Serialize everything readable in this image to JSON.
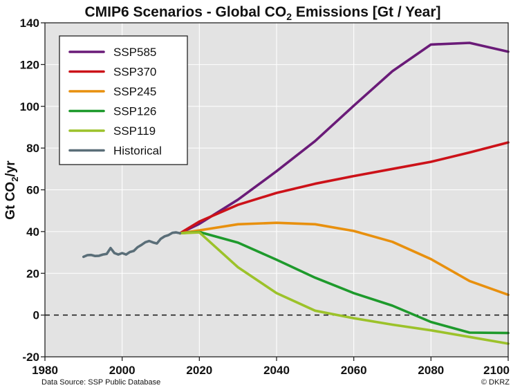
{
  "chart_data": {
    "type": "line",
    "title": {
      "prefix": "CMIP6 Scenarios  -   Global CO",
      "sub": "2",
      "suffix": " Emissions [Gt / Year]"
    },
    "ylabel": {
      "prefix": "Gt CO",
      "sub": "2",
      "suffix": "/yr"
    },
    "xlabel": "",
    "xlim": [
      1980,
      2100
    ],
    "ylim": [
      -20,
      140
    ],
    "x_ticks": [
      1980,
      2000,
      2020,
      2040,
      2060,
      2080,
      2100
    ],
    "y_ticks": [
      -20,
      0,
      20,
      40,
      60,
      80,
      100,
      120,
      140
    ],
    "grid": true,
    "zero_line": "dashed",
    "legend_position": "top-left",
    "series": [
      {
        "name": "SSP585",
        "color": "#6a1b78",
        "x": [
          2015,
          2020,
          2030,
          2040,
          2050,
          2060,
          2070,
          2080,
          2090,
          2100
        ],
        "y": [
          39.2,
          43.7,
          55.3,
          68.9,
          83.4,
          100.3,
          116.8,
          129.6,
          130.4,
          126.2
        ]
      },
      {
        "name": "SSP370",
        "color": "#cc1219",
        "x": [
          2015,
          2020,
          2030,
          2040,
          2050,
          2060,
          2070,
          2080,
          2090,
          2100
        ],
        "y": [
          39.2,
          44.8,
          52.8,
          58.5,
          62.9,
          66.6,
          70.0,
          73.4,
          77.9,
          82.7
        ]
      },
      {
        "name": "SSP245",
        "color": "#e8900e",
        "x": [
          2015,
          2020,
          2030,
          2040,
          2050,
          2060,
          2070,
          2080,
          2090,
          2100
        ],
        "y": [
          39.2,
          40.6,
          43.5,
          44.2,
          43.5,
          40.3,
          35.1,
          26.8,
          16.3,
          9.7
        ]
      },
      {
        "name": "SSP126",
        "color": "#1e9a2c",
        "x": [
          2015,
          2020,
          2030,
          2040,
          2050,
          2060,
          2070,
          2080,
          2090,
          2100
        ],
        "y": [
          39.2,
          39.8,
          34.7,
          26.5,
          17.9,
          10.5,
          4.5,
          -3.3,
          -8.4,
          -8.6
        ]
      },
      {
        "name": "SSP119",
        "color": "#9cc22a",
        "x": [
          2015,
          2020,
          2030,
          2040,
          2050,
          2060,
          2070,
          2080,
          2090,
          2100
        ],
        "y": [
          39.2,
          39.6,
          22.9,
          10.5,
          2.1,
          -1.5,
          -4.6,
          -7.3,
          -10.5,
          -13.7
        ]
      },
      {
        "name": "Historical",
        "color": "#5a6e78",
        "x": [
          1990,
          1991,
          1992,
          1993,
          1994,
          1995,
          1996,
          1997,
          1998,
          1999,
          2000,
          2001,
          2002,
          2003,
          2004,
          2005,
          2006,
          2007,
          2008,
          2009,
          2010,
          2011,
          2012,
          2013,
          2014,
          2015
        ],
        "y": [
          27.9,
          28.7,
          28.8,
          28.3,
          28.4,
          29.0,
          29.3,
          32.1,
          29.7,
          29.0,
          29.7,
          29.0,
          30.2,
          30.7,
          32.5,
          33.6,
          34.9,
          35.5,
          34.8,
          34.3,
          36.5,
          37.7,
          38.3,
          39.4,
          39.6,
          39.2
        ]
      }
    ],
    "footer_left": "Data Source: SSP Public Database",
    "footer_right": "© DKRZ"
  }
}
